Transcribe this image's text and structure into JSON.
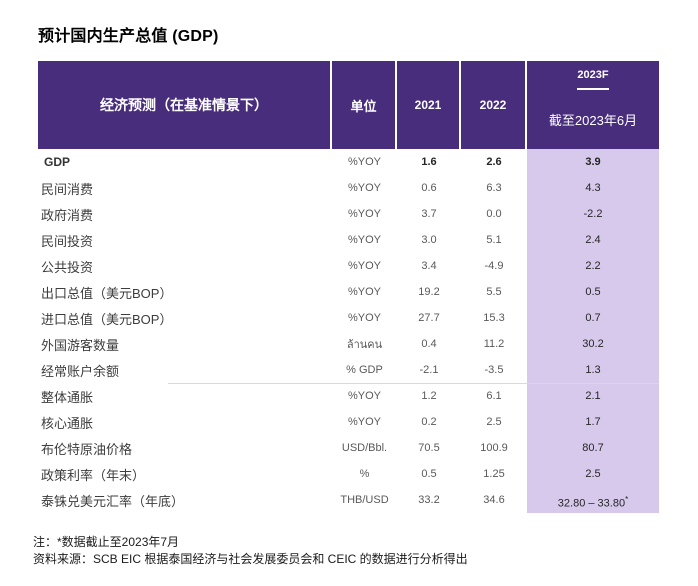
{
  "title": "预计国内生产总值 (GDP)",
  "table": {
    "header": {
      "col_label": "经济预测（在基准情景下）",
      "col_unit": "单位",
      "col_2021": "2021",
      "col_2022": "2022",
      "col_2023f": "2023F",
      "col_2023f_sub": "截至2023年6月"
    },
    "rows": [
      {
        "label": "GDP",
        "unit": "%YOY",
        "y2021": "1.6",
        "y2022": "2.6",
        "y2023f": "3.9",
        "bold": true
      },
      {
        "label": "民间消费",
        "unit": "%YOY",
        "y2021": "0.6",
        "y2022": "6.3",
        "y2023f": "4.3"
      },
      {
        "label": "政府消费",
        "unit": "%YOY",
        "y2021": "3.7",
        "y2022": "0.0",
        "y2023f": "-2.2"
      },
      {
        "label": "民间投资",
        "unit": "%YOY",
        "y2021": "3.0",
        "y2022": "5.1",
        "y2023f": "2.4"
      },
      {
        "label": "公共投资",
        "unit": "%YOY",
        "y2021": "3.4",
        "y2022": "-4.9",
        "y2023f": "2.2"
      },
      {
        "label": "出口总值（美元BOP）",
        "unit": "%YOY",
        "y2021": "19.2",
        "y2022": "5.5",
        "y2023f": "0.5"
      },
      {
        "label": "进口总值（美元BOP）",
        "unit": "%YOY",
        "y2021": "27.7",
        "y2022": "15.3",
        "y2023f": "0.7"
      },
      {
        "label": "外国游客数量",
        "unit": "ล้านคน",
        "y2021": "0.4",
        "y2022": "11.2",
        "y2023f": "30.2"
      },
      {
        "label": "经常账户余额",
        "unit": "% GDP",
        "y2021": "-2.1",
        "y2022": "-3.5",
        "y2023f": "1.3"
      },
      {
        "label": "整体通胀",
        "unit": "%YOY",
        "y2021": "1.2",
        "y2022": "6.1",
        "y2023f": "2.1",
        "divider_top": true
      },
      {
        "label": "核心通胀",
        "unit": "%YOY",
        "y2021": "0.2",
        "y2022": "2.5",
        "y2023f": "1.7"
      },
      {
        "label": "布伦特原油价格",
        "unit": "USD/Bbl.",
        "y2021": "70.5",
        "y2022": "100.9",
        "y2023f": "80.7"
      },
      {
        "label": "政策利率（年末）",
        "unit": "%",
        "y2021": "0.5",
        "y2022": "1.25",
        "y2023f": "2.5"
      },
      {
        "label": "泰铢兑美元汇率（年底）",
        "unit": "THB/USD",
        "y2021": "33.2",
        "y2022": "34.6",
        "y2023f": "32.80 – 33.80*"
      }
    ]
  },
  "notes": {
    "footnote": "注：*数据截止至2023年7月",
    "source": "资料来源：SCB EIC 根据泰国经济与社会发展委员会和 CEIC 的数据进行分析得出"
  },
  "colors": {
    "header_purple": "#482d7d",
    "forecast_column_bg": "#d6c9ec",
    "divider_gray": "#d9d9d9"
  }
}
